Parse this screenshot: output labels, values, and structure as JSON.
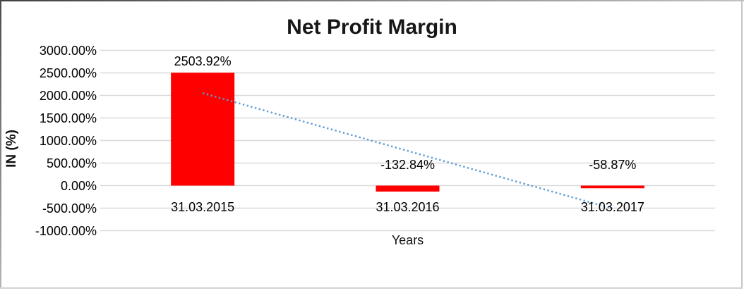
{
  "chart_data": {
    "type": "bar",
    "title": "Net Profit Margin",
    "xlabel": "Years",
    "ylabel": "IN (%)",
    "categories": [
      "31.03.2015",
      "31.03.2016",
      "31.03.2017"
    ],
    "series": [
      {
        "name": "Net Profit Margin",
        "color": "#ff0000",
        "values": [
          2503.92,
          -132.84,
          -58.87
        ]
      }
    ],
    "data_labels": [
      "2503.92%",
      "-132.84%",
      "-58.87%"
    ],
    "y_axis": {
      "tick_labels": [
        "3000.00%",
        "2500.00%",
        "2000.00%",
        "1500.00%",
        "1000.00%",
        "500.00%",
        "0.00%",
        "-500.00%",
        "-1000.00%"
      ],
      "tick_values": [
        3000,
        2500,
        2000,
        1500,
        1000,
        500,
        0,
        -500,
        -1000
      ],
      "range": [
        -1000,
        3000
      ]
    },
    "gridlines": {
      "show": true,
      "color": "#d9d9d9"
    },
    "trendline": {
      "type": "linear",
      "style": "dotted",
      "color": "#5b9bd5",
      "start_value": 2052,
      "end_value": -511
    },
    "legend": "none"
  }
}
